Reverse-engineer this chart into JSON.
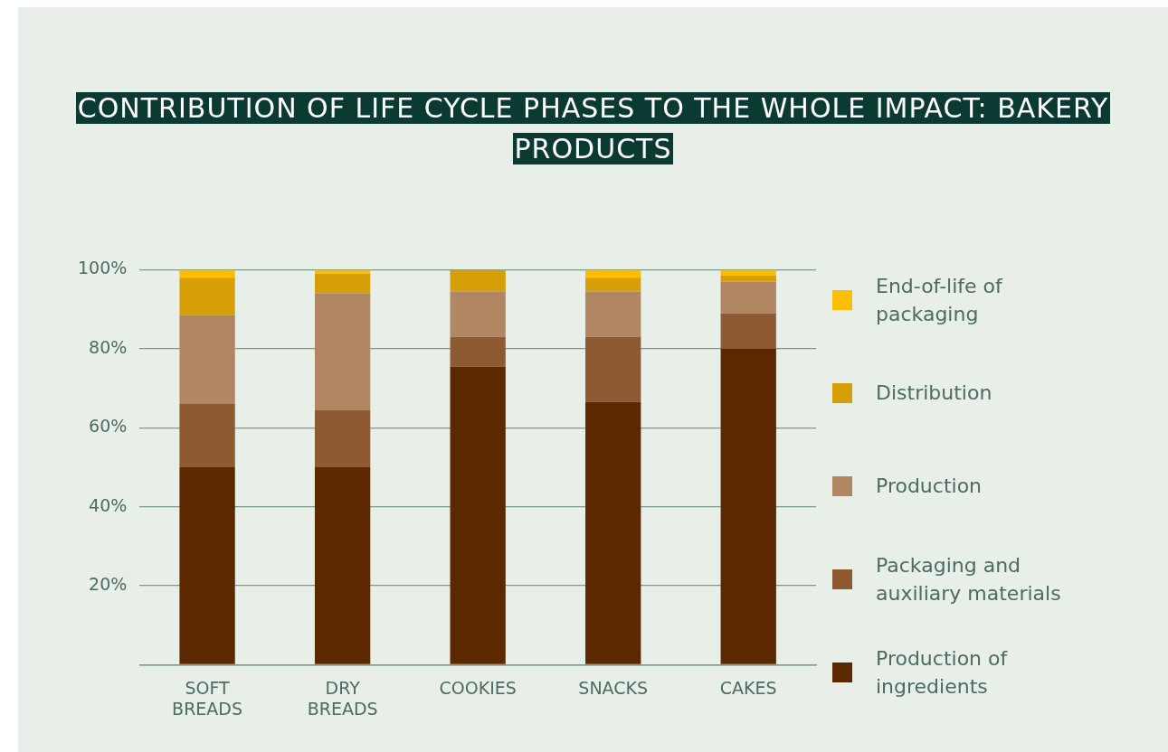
{
  "chart_data": {
    "type": "bar",
    "title": "CONTRIBUTION OF LIFE CYCLE PHASES TO THE WHOLE IMPACT: BAKERY PRODUCTS",
    "categories": [
      "SOFT BREADS",
      "DRY BREADS",
      "COOKIES",
      "SNACKS",
      "CAKES"
    ],
    "stacked": true,
    "ylim": [
      0,
      100
    ],
    "yticks": [
      {
        "value": 0,
        "label": null
      },
      {
        "value": 20,
        "label": "20%"
      },
      {
        "value": 40,
        "label": "40%"
      },
      {
        "value": 60,
        "label": "60%"
      },
      {
        "value": 80,
        "label": "80%"
      },
      {
        "value": 100,
        "label": "100%"
      }
    ],
    "grid": "y",
    "legend": "right",
    "series": [
      {
        "name": "Production of ingredients",
        "color": "#5c2800",
        "values": [
          50,
          50,
          75.5,
          66.5,
          80
        ]
      },
      {
        "name": "Packaging and auxiliary materials",
        "color": "#8e5a31",
        "values": [
          16,
          14.5,
          7.5,
          16.5,
          9
        ]
      },
      {
        "name": "Production",
        "color": "#b08663",
        "values": [
          22.5,
          29.5,
          11.5,
          11.5,
          8
        ]
      },
      {
        "name": "Distribution",
        "color": "#d69e07",
        "values": [
          9.5,
          5,
          5.5,
          3.5,
          1.5
        ]
      },
      {
        "name": "End-of-life of packaging",
        "color": "#fdbd00",
        "values": [
          2,
          1,
          0,
          2,
          1.5
        ]
      }
    ]
  }
}
